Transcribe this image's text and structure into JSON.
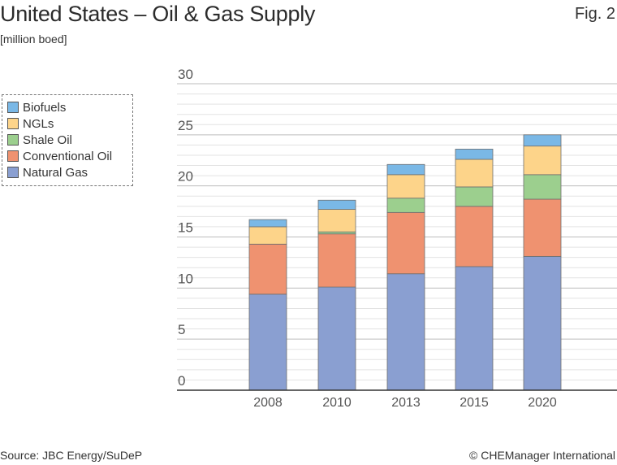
{
  "header": {
    "title": "United States – Oil & Gas Supply",
    "unit": "[million boed]",
    "figure_label": "Fig. 2"
  },
  "footer": {
    "source": "Source: JBC Energy/SuDeP",
    "copyright": "© CHEManager International"
  },
  "legend": {
    "items": [
      {
        "label": "Biofuels",
        "color": "#7ab8e6"
      },
      {
        "label": "NGLs",
        "color": "#fdd48a"
      },
      {
        "label": "Shale Oil",
        "color": "#9ccf8e"
      },
      {
        "label": "Conventional Oil",
        "color": "#ef9270"
      },
      {
        "label": "Natural Gas",
        "color": "#8a9fd1"
      }
    ]
  },
  "chart_data": {
    "type": "bar",
    "stacked": true,
    "title": "United States – Oil & Gas Supply",
    "ylabel": "[million boed]",
    "xlabel": "",
    "categories": [
      "2008",
      "2010",
      "2013",
      "2015",
      "2020"
    ],
    "ylim": [
      0,
      30
    ],
    "yticks": [
      0,
      5,
      10,
      15,
      20,
      25,
      30
    ],
    "grid": true,
    "legend_position": "left",
    "series": [
      {
        "name": "Natural Gas",
        "color": "#8a9fd1",
        "values": [
          9.4,
          10.1,
          11.4,
          12.1,
          13.1
        ]
      },
      {
        "name": "Conventional Oil",
        "color": "#ef9270",
        "values": [
          4.9,
          5.2,
          6.0,
          5.9,
          5.6
        ]
      },
      {
        "name": "Shale Oil",
        "color": "#9ccf8e",
        "values": [
          0.0,
          0.2,
          1.4,
          1.9,
          2.4
        ]
      },
      {
        "name": "NGLs",
        "color": "#fdd48a",
        "values": [
          1.7,
          2.2,
          2.3,
          2.7,
          2.8
        ]
      },
      {
        "name": "Biofuels",
        "color": "#7ab8e6",
        "values": [
          0.7,
          0.9,
          1.0,
          1.0,
          1.1
        ]
      }
    ]
  }
}
